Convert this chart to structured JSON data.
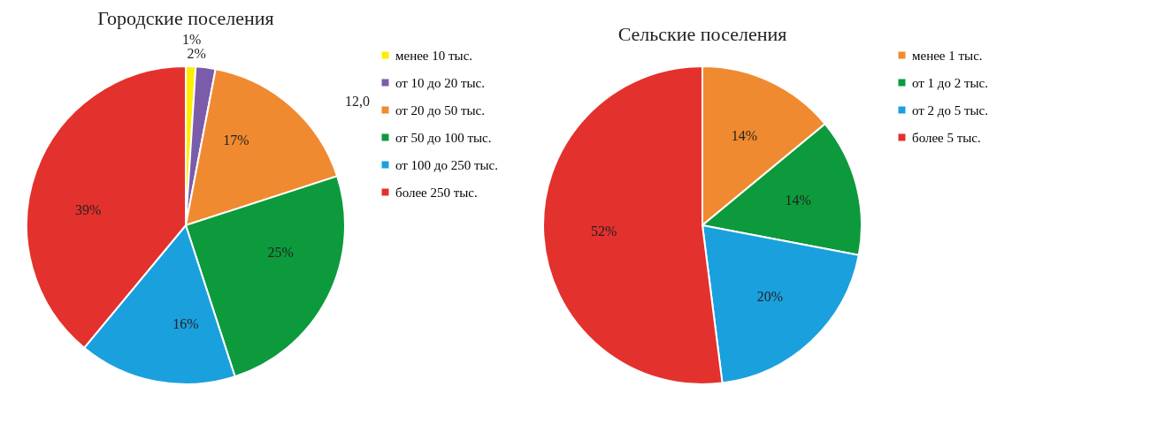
{
  "chart_data": [
    {
      "type": "pie",
      "title": "Городские поселения",
      "categories": [
        "менее 10 тыс.",
        "от 10 до 20 тыс.",
        "от 20 до 50 тыс.",
        "от 50 до 100 тыс.",
        "от 100 до 250 тыс.",
        "более 250 тыс."
      ],
      "values": [
        1,
        2,
        17,
        25,
        16,
        39
      ],
      "value_labels": [
        "1%",
        "2%",
        "17%",
        "25%",
        "16%",
        "39%"
      ],
      "colors": [
        "#ffed00",
        "#7b5cab",
        "#f08a30",
        "#0d9a3c",
        "#1ba0de",
        "#e3312d"
      ],
      "legend": "right",
      "annotations": [
        "12,0"
      ]
    },
    {
      "type": "pie",
      "title": "Сельские поселения",
      "categories": [
        "менее 1 тыс.",
        "от 1 до 2 тыс.",
        "от 2 до 5 тыс.",
        "более 5 тыс."
      ],
      "values": [
        14,
        14,
        20,
        52
      ],
      "value_labels": [
        "14%",
        "14%",
        "20%",
        "52%"
      ],
      "colors": [
        "#f08a30",
        "#0d9a3c",
        "#1ba0de",
        "#e3312d"
      ],
      "legend": "right"
    }
  ]
}
